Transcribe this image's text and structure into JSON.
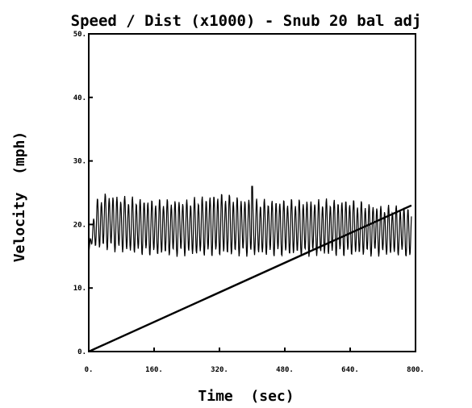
{
  "chart_data": {
    "type": "line",
    "title": "Speed / Dist (x1000) - Snub 20 bal adj",
    "xlabel": "Time  (sec)",
    "ylabel": "Velocity  (mph)",
    "xlim": [
      0,
      800
    ],
    "ylim": [
      0,
      50
    ],
    "x_ticks": [
      0,
      160,
      320,
      480,
      640,
      800
    ],
    "x_tick_labels": [
      "0.",
      "160.",
      "320.",
      "480.",
      "640.",
      "800."
    ],
    "y_ticks": [
      0,
      10,
      20,
      30,
      40,
      50
    ],
    "y_tick_labels": [
      "0.",
      "10.",
      "20.",
      "30.",
      "40.",
      "50."
    ],
    "grid": false,
    "series": [
      {
        "role": "speed",
        "style": "oscillating",
        "x": [
          0,
          10,
          20,
          40,
          80,
          160,
          240,
          320,
          400,
          480,
          560,
          640,
          720,
          780,
          790
        ],
        "mid": [
          15.5,
          19,
          20,
          20.5,
          20,
          19.5,
          19.5,
          20,
          19.5,
          19.5,
          19.5,
          19.5,
          19,
          19,
          18
        ],
        "amplitude": [
          0,
          2,
          3.5,
          4,
          4,
          4,
          4,
          4.5,
          4,
          4,
          4,
          4,
          3.5,
          3.5,
          4
        ],
        "cycle_seconds": 9.5,
        "peak_x": 400,
        "peak_y": 26
      },
      {
        "role": "distance_x1000",
        "style": "straight",
        "x": [
          0,
          790
        ],
        "values": [
          0,
          23
        ]
      }
    ]
  }
}
